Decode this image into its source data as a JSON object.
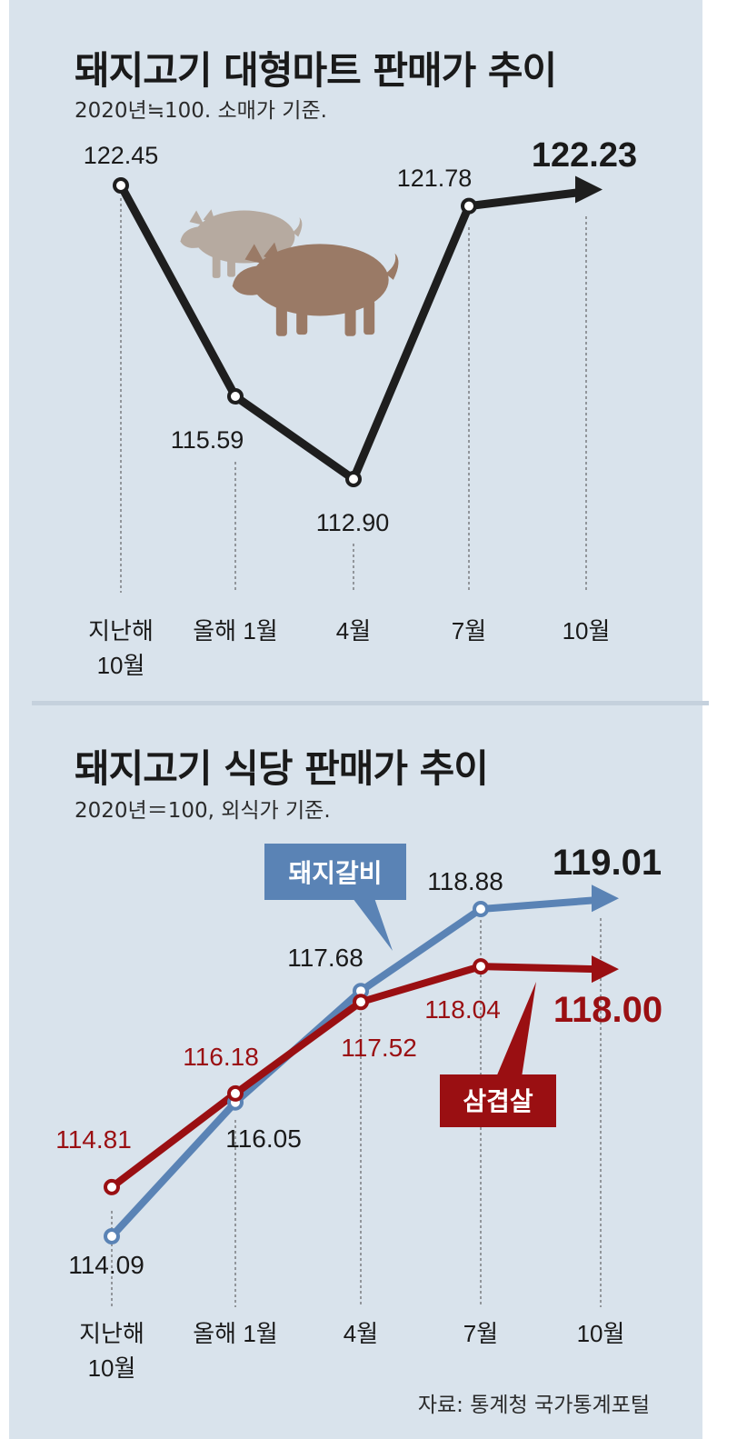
{
  "chart_data": [
    {
      "type": "line",
      "title": "돼지고기 대형마트 판매가 추이",
      "subtitle": "2020년≒100. 소매가 기준.",
      "categories": [
        "지난해\n10월",
        "올해 1월",
        "4월",
        "7월",
        "10월"
      ],
      "series": [
        {
          "values": [
            122.45,
            115.59,
            112.9,
            121.78,
            122.23
          ],
          "color": "#1e1e1e"
        }
      ],
      "data_labels": [
        "122.45",
        "115.59",
        "112.90",
        "121.78",
        "122.23"
      ],
      "ylim": [
        110,
        124
      ],
      "grid": false
    },
    {
      "type": "line",
      "title": "돼지고기 식당 판매가 추이",
      "subtitle": "2020년＝100, 외식가 기준.",
      "categories": [
        "지난해\n10월",
        "올해 1월",
        "4월",
        "7월",
        "10월"
      ],
      "series": [
        {
          "name": "돼지갈비",
          "values": [
            114.09,
            116.05,
            117.68,
            118.88,
            119.01
          ],
          "data_labels": [
            "114.09",
            "116.05",
            "117.68",
            "118.88",
            "119.01"
          ],
          "color": "#5a83b5"
        },
        {
          "name": "삼겹살",
          "values": [
            114.81,
            116.18,
            117.52,
            118.04,
            118.0
          ],
          "data_labels": [
            "114.81",
            "116.18",
            "117.52",
            "118.04",
            "118.00"
          ],
          "color": "#9a0f12"
        }
      ],
      "ylim": [
        113.5,
        119.5
      ],
      "grid": false
    }
  ],
  "source": "자료: 통계청 국가통계포털",
  "colors": {
    "background": "#d9e3ec",
    "line_dark": "#1e1e1e",
    "galbi": "#5a83b5",
    "samgyeopsal": "#9a0f12"
  },
  "icons": [
    "pig-illustration-icon"
  ]
}
